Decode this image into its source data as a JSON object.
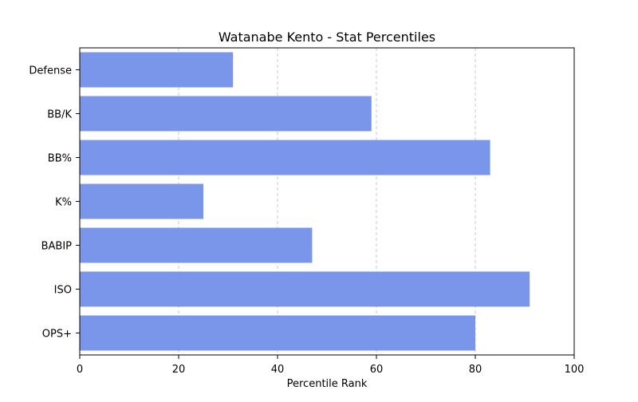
{
  "chart_data": {
    "type": "bar",
    "orientation": "horizontal",
    "title": "Watanabe Kento - Stat Percentiles",
    "xlabel": "Percentile Rank",
    "ylabel": "",
    "categories": [
      "OPS+",
      "ISO",
      "BABIP",
      "K%",
      "BB%",
      "BB/K",
      "Defense"
    ],
    "values": [
      80,
      91,
      47,
      25,
      83,
      59,
      31
    ],
    "xlim": [
      0,
      100
    ],
    "xticks": [
      0,
      20,
      40,
      60,
      80,
      100
    ],
    "grid": "x-axis dashed",
    "bar_color": "#7a96ea"
  }
}
